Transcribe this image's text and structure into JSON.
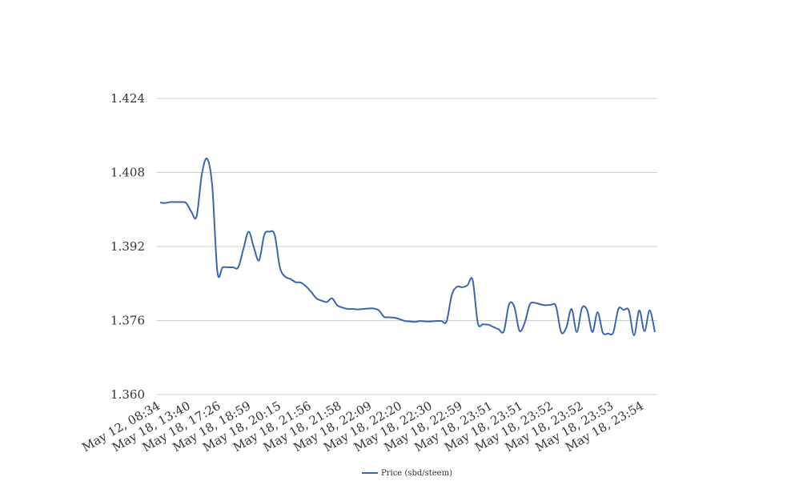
{
  "chart_data": {
    "type": "line",
    "title": "",
    "xlabel": "",
    "ylabel": "",
    "ylim": [
      1.36,
      1.424
    ],
    "yticks": [
      "1.360",
      "1.376",
      "1.392",
      "1.408",
      "1.424"
    ],
    "ytick_values": [
      1.36,
      1.376,
      1.392,
      1.408,
      1.424
    ],
    "xtick_labels": [
      "May 12, 08:34",
      "May 18, 13:40",
      "May 18, 17:26",
      "May 18, 18:59",
      "May 18, 20:15",
      "May 18, 21:56",
      "May 18, 21:58",
      "May 18, 22:09",
      "May 18, 22:20",
      "May 18, 22:30",
      "May 18, 22:59",
      "May 18, 23:51",
      "May 18, 23:51",
      "May 18, 23:52",
      "May 18, 23:52",
      "May 18, 23:53",
      "May 18, 23:54"
    ],
    "grid": true,
    "legend_position": "bottom",
    "series": [
      {
        "name": "Price (sbd/steem)",
        "color": "#3a66b0",
        "values": [
          1.4015,
          1.4014,
          1.4016,
          1.4016,
          1.4016,
          1.4014,
          1.3995,
          1.3985,
          1.4075,
          1.411,
          1.4052,
          1.3865,
          1.3875,
          1.3875,
          1.3875,
          1.3875,
          1.3915,
          1.3952,
          1.3918,
          1.389,
          1.3945,
          1.3952,
          1.3945,
          1.3875,
          1.3855,
          1.385,
          1.3843,
          1.3842,
          1.3834,
          1.3822,
          1.3808,
          1.3803,
          1.38,
          1.3808,
          1.3793,
          1.3788,
          1.3785,
          1.3785,
          1.3784,
          1.3785,
          1.3786,
          1.3786,
          1.3782,
          1.3768,
          1.3767,
          1.3766,
          1.3763,
          1.3759,
          1.3758,
          1.3757,
          1.3759,
          1.3758,
          1.3758,
          1.3759,
          1.3759,
          1.3758,
          1.3815,
          1.3833,
          1.3832,
          1.3836,
          1.3848,
          1.3755,
          1.3752,
          1.3751,
          1.3746,
          1.3741,
          1.3737,
          1.3795,
          1.379,
          1.3738,
          1.3755,
          1.3795,
          1.3798,
          1.3795,
          1.3793,
          1.3794,
          1.3791,
          1.3735,
          1.3745,
          1.3785,
          1.3735,
          1.3787,
          1.3782,
          1.3735,
          1.3778,
          1.3734,
          1.3732,
          1.3734,
          1.3785,
          1.3783,
          1.3782,
          1.3728,
          1.3782,
          1.3737,
          1.3782,
          1.3735
        ]
      }
    ]
  }
}
